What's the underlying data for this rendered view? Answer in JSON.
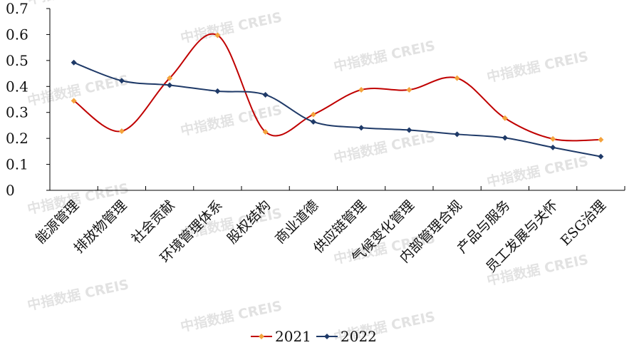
{
  "watermark": "中指数据 CREIS",
  "colors": {
    "series_2021": "#c00000",
    "series_2021_marker": "#f4a33c",
    "series_2022": "#1f3a68",
    "axis": "#000000"
  },
  "chart_data": {
    "type": "line",
    "title": "",
    "xlabel": "",
    "ylabel": "",
    "ylim": [
      0,
      0.7
    ],
    "yticks": [
      "0",
      "0.1",
      "0.2",
      "0.3",
      "0.4",
      "0.5",
      "0.6",
      "0.7"
    ],
    "grid": false,
    "legend": "bottom",
    "smooth": true,
    "categories": [
      "能源管理",
      "排放物管理",
      "社会贡献",
      "环境管理体系",
      "股权结构",
      "商业道德",
      "供应链管理",
      "气候变化管理",
      "内部管理合规",
      "产品与服务",
      "员工发展与关怀",
      "ESG治理"
    ],
    "series": [
      {
        "name": "2021",
        "values": [
          0.345,
          0.228,
          0.432,
          0.597,
          0.225,
          0.292,
          0.387,
          0.387,
          0.432,
          0.278,
          0.198,
          0.195
        ]
      },
      {
        "name": "2022",
        "values": [
          0.492,
          0.422,
          0.405,
          0.382,
          0.368,
          0.264,
          0.241,
          0.232,
          0.216,
          0.202,
          0.165,
          0.13
        ]
      }
    ]
  }
}
